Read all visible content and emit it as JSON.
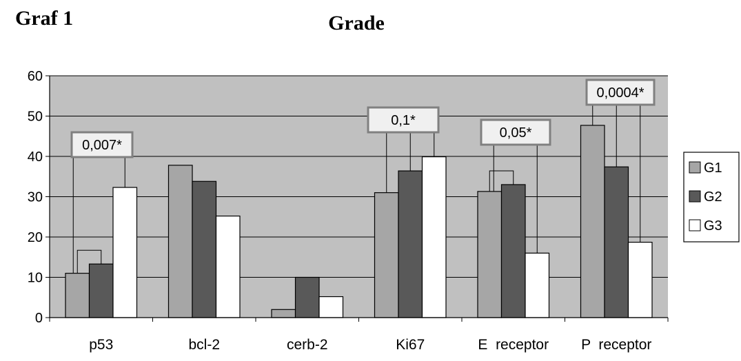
{
  "figure_label": "Graf 1",
  "chart_data": {
    "type": "bar",
    "title": "Grade",
    "xlabel": "",
    "ylabel": "",
    "ylim": [
      0,
      60
    ],
    "yticks": [
      0,
      10,
      20,
      30,
      40,
      50,
      60
    ],
    "grid": true,
    "legend_position": "right",
    "categories": [
      "p53",
      "bcl-2",
      "cerb-2",
      "Ki67",
      "E  receptor",
      "P  receptor"
    ],
    "series": [
      {
        "name": "G1",
        "color": "#a6a6a6",
        "values": [
          11,
          37.8,
          2,
          31,
          31.3,
          47.7
        ]
      },
      {
        "name": "G2",
        "color": "#595959",
        "values": [
          13.3,
          33.8,
          10,
          36.4,
          33,
          37.4
        ]
      },
      {
        "name": "G3",
        "color": "#ffffff",
        "values": [
          32.3,
          25.2,
          5.2,
          39.9,
          16,
          18.7
        ]
      }
    ],
    "annotations": [
      {
        "category": 0,
        "text": "0,007*"
      },
      {
        "category": 3,
        "text": "0,1*"
      },
      {
        "category": 4,
        "text": "0,05*"
      },
      {
        "category": 5,
        "text": "0,0004*"
      }
    ],
    "colors": {
      "plot_background": "#c0c0c0",
      "annotation_box": "#f0f0f0"
    }
  }
}
